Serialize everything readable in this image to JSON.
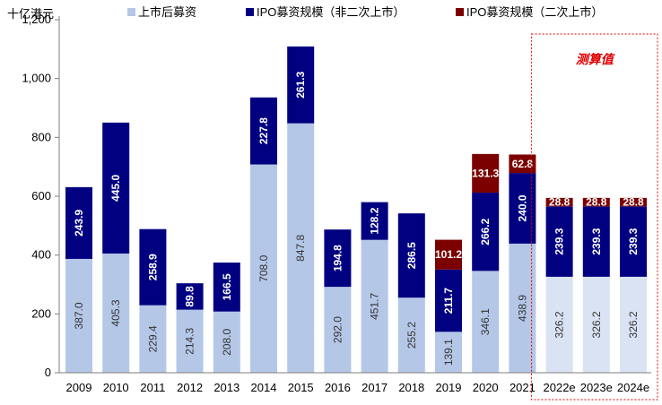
{
  "chart_data": {
    "type": "bar",
    "stacked": true,
    "unit_label": "十亿港元",
    "categories": [
      "2009",
      "2010",
      "2011",
      "2012",
      "2013",
      "2014",
      "2015",
      "2016",
      "2017",
      "2018",
      "2019",
      "2020",
      "2021",
      "2022e",
      "2023e",
      "2024e"
    ],
    "series": [
      {
        "name": "上市后募资",
        "color": "#b4c7e7",
        "values": [
          387.0,
          405.3,
          229.4,
          214.3,
          208.0,
          708.0,
          847.8,
          292.0,
          451.7,
          255.2,
          139.1,
          346.1,
          438.9,
          326.2,
          326.2,
          326.2
        ],
        "labels": [
          "387.0",
          "405.3",
          "229.4",
          "214.3",
          "208.0",
          "708.0",
          "847.8",
          "292.0",
          "451.7",
          "255.2",
          "139.1",
          "346.1",
          "438.9",
          "326.2",
          "326.2",
          "326.2"
        ]
      },
      {
        "name": "IPO募资规模（非二次上市）",
        "color": "#000080",
        "values": [
          243.9,
          445.0,
          258.9,
          89.8,
          166.5,
          227.8,
          261.3,
          194.8,
          128.2,
          286.5,
          211.7,
          266.2,
          240.0,
          239.3,
          239.3,
          239.3
        ],
        "labels": [
          "243.9",
          "445.0",
          "258.9",
          "89.8",
          "166.5",
          "227.8",
          "261.3",
          "194.8",
          "128.2",
          "286.5",
          "211.7",
          "266.2",
          "240.0",
          "239.3",
          "239.3",
          "239.3"
        ]
      },
      {
        "name": "IPO募资规模（二次上市）",
        "color": "#7b0000",
        "values": [
          0,
          0,
          0,
          0,
          0,
          0,
          0,
          0,
          0,
          0,
          101.2,
          131.3,
          62.8,
          28.8,
          28.8,
          28.8
        ],
        "labels": [
          "",
          "",
          "",
          "",
          "",
          "",
          "",
          "",
          "",
          "",
          "101.2",
          "131.3",
          "62.8",
          "28.8",
          "28.8",
          "28.8"
        ]
      }
    ],
    "estimate_color_light": "#dae3f3",
    "estimate_start_index": 13,
    "estimate_box_label": "测算值",
    "ylim": [
      0,
      1200
    ],
    "yticks": [
      0,
      200,
      400,
      600,
      800,
      1000,
      1200
    ],
    "ytick_labels": [
      "0",
      "200",
      "400",
      "600",
      "800",
      "1,000",
      "1,200"
    ],
    "legend_position": "top",
    "grid": false
  }
}
